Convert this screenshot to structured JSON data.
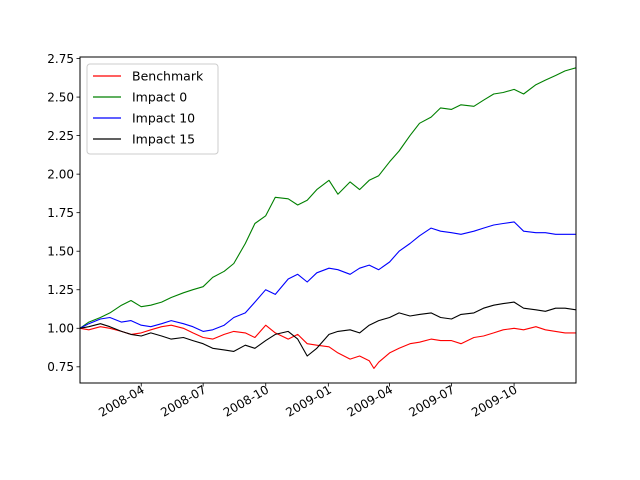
{
  "chart_data": {
    "type": "line",
    "title": "",
    "xlabel": "",
    "ylabel": "",
    "x_range": [
      "2008-01-02",
      "2009-12-31"
    ],
    "ylim": [
      0.645,
      2.76
    ],
    "yticks": [
      0.75,
      1.0,
      1.25,
      1.5,
      1.75,
      2.0,
      2.25,
      2.5,
      2.75
    ],
    "ytick_labels": [
      "0.75",
      "1.00",
      "1.25",
      "1.50",
      "1.75",
      "2.00",
      "2.25",
      "2.50",
      "2.75"
    ],
    "xticks": [
      "2008-04-01",
      "2008-07-01",
      "2008-10-01",
      "2009-01-01",
      "2009-04-01",
      "2009-07-01",
      "2009-10-01"
    ],
    "xtick_labels": [
      "2008-04",
      "2008-07",
      "2008-10",
      "2009-01",
      "2009-04",
      "2009-07",
      "2009-10"
    ],
    "legend_position": "upper-left",
    "grid": false,
    "series": [
      {
        "name": "Benchmark",
        "color": "#ff0000",
        "x": [
          "2008-01-02",
          "2008-01-15",
          "2008-02-01",
          "2008-02-15",
          "2008-03-03",
          "2008-03-17",
          "2008-04-01",
          "2008-04-15",
          "2008-05-01",
          "2008-05-15",
          "2008-06-02",
          "2008-06-16",
          "2008-07-01",
          "2008-07-15",
          "2008-08-01",
          "2008-08-15",
          "2008-09-01",
          "2008-09-15",
          "2008-10-01",
          "2008-10-15",
          "2008-11-03",
          "2008-11-17",
          "2008-12-01",
          "2008-12-15",
          "2009-01-02",
          "2009-01-15",
          "2009-02-02",
          "2009-02-16",
          "2009-03-02",
          "2009-03-09",
          "2009-03-16",
          "2009-04-01",
          "2009-04-15",
          "2009-05-01",
          "2009-05-15",
          "2009-06-01",
          "2009-06-15",
          "2009-07-01",
          "2009-07-15",
          "2009-08-03",
          "2009-08-17",
          "2009-09-01",
          "2009-09-15",
          "2009-10-01",
          "2009-10-15",
          "2009-11-02",
          "2009-11-16",
          "2009-12-01",
          "2009-12-15",
          "2009-12-31"
        ],
        "values": [
          1.0,
          0.99,
          1.01,
          1.0,
          0.98,
          0.96,
          0.97,
          0.99,
          1.01,
          1.02,
          1.0,
          0.97,
          0.94,
          0.93,
          0.96,
          0.98,
          0.97,
          0.94,
          1.02,
          0.97,
          0.93,
          0.96,
          0.9,
          0.89,
          0.88,
          0.84,
          0.8,
          0.82,
          0.79,
          0.74,
          0.78,
          0.84,
          0.87,
          0.9,
          0.91,
          0.93,
          0.92,
          0.92,
          0.9,
          0.94,
          0.95,
          0.97,
          0.99,
          1.0,
          0.99,
          1.01,
          0.99,
          0.98,
          0.97,
          0.97
        ]
      },
      {
        "name": "Impact 0",
        "color": "#008000",
        "x": [
          "2008-01-02",
          "2008-01-15",
          "2008-02-01",
          "2008-02-15",
          "2008-03-03",
          "2008-03-17",
          "2008-04-01",
          "2008-04-15",
          "2008-05-01",
          "2008-05-15",
          "2008-06-02",
          "2008-06-16",
          "2008-07-01",
          "2008-07-15",
          "2008-08-01",
          "2008-08-15",
          "2008-09-01",
          "2008-09-15",
          "2008-10-01",
          "2008-10-15",
          "2008-11-03",
          "2008-11-17",
          "2008-12-01",
          "2008-12-15",
          "2009-01-02",
          "2009-01-15",
          "2009-02-02",
          "2009-02-16",
          "2009-03-02",
          "2009-03-16",
          "2009-04-01",
          "2009-04-15",
          "2009-05-01",
          "2009-05-15",
          "2009-06-01",
          "2009-06-15",
          "2009-07-01",
          "2009-07-15",
          "2009-08-03",
          "2009-08-17",
          "2009-09-01",
          "2009-09-15",
          "2009-10-01",
          "2009-10-15",
          "2009-11-02",
          "2009-11-16",
          "2009-12-01",
          "2009-12-15",
          "2009-12-31"
        ],
        "values": [
          1.0,
          1.04,
          1.07,
          1.1,
          1.15,
          1.18,
          1.14,
          1.15,
          1.17,
          1.2,
          1.23,
          1.25,
          1.27,
          1.33,
          1.37,
          1.42,
          1.55,
          1.68,
          1.73,
          1.85,
          1.84,
          1.8,
          1.83,
          1.9,
          1.96,
          1.87,
          1.95,
          1.9,
          1.96,
          1.99,
          2.08,
          2.15,
          2.25,
          2.33,
          2.37,
          2.43,
          2.42,
          2.45,
          2.44,
          2.48,
          2.52,
          2.53,
          2.55,
          2.52,
          2.58,
          2.61,
          2.64,
          2.67,
          2.69
        ]
      },
      {
        "name": "Impact 10",
        "color": "#0000ff",
        "x": [
          "2008-01-02",
          "2008-01-15",
          "2008-02-01",
          "2008-02-15",
          "2008-03-03",
          "2008-03-17",
          "2008-04-01",
          "2008-04-15",
          "2008-05-01",
          "2008-05-15",
          "2008-06-02",
          "2008-06-16",
          "2008-07-01",
          "2008-07-15",
          "2008-08-01",
          "2008-08-15",
          "2008-09-01",
          "2008-09-15",
          "2008-10-01",
          "2008-10-15",
          "2008-11-03",
          "2008-11-17",
          "2008-12-01",
          "2008-12-15",
          "2009-01-02",
          "2009-01-15",
          "2009-02-02",
          "2009-02-16",
          "2009-03-02",
          "2009-03-16",
          "2009-04-01",
          "2009-04-15",
          "2009-05-01",
          "2009-05-15",
          "2009-06-01",
          "2009-06-15",
          "2009-07-01",
          "2009-07-15",
          "2009-08-03",
          "2009-08-17",
          "2009-09-01",
          "2009-09-15",
          "2009-10-01",
          "2009-10-15",
          "2009-11-02",
          "2009-11-16",
          "2009-12-01",
          "2009-12-15",
          "2009-12-31"
        ],
        "values": [
          1.0,
          1.03,
          1.06,
          1.07,
          1.04,
          1.05,
          1.02,
          1.01,
          1.03,
          1.05,
          1.03,
          1.01,
          0.98,
          0.99,
          1.02,
          1.07,
          1.1,
          1.17,
          1.25,
          1.22,
          1.32,
          1.35,
          1.3,
          1.36,
          1.39,
          1.38,
          1.35,
          1.39,
          1.41,
          1.38,
          1.43,
          1.5,
          1.55,
          1.6,
          1.65,
          1.63,
          1.62,
          1.61,
          1.63,
          1.65,
          1.67,
          1.68,
          1.69,
          1.63,
          1.62,
          1.62,
          1.61,
          1.61,
          1.61
        ]
      },
      {
        "name": "Impact 15",
        "color": "#000000",
        "x": [
          "2008-01-02",
          "2008-01-15",
          "2008-02-01",
          "2008-02-15",
          "2008-03-03",
          "2008-03-17",
          "2008-04-01",
          "2008-04-15",
          "2008-05-01",
          "2008-05-15",
          "2008-06-02",
          "2008-06-16",
          "2008-07-01",
          "2008-07-15",
          "2008-08-01",
          "2008-08-15",
          "2008-09-01",
          "2008-09-15",
          "2008-10-01",
          "2008-10-15",
          "2008-11-03",
          "2008-11-17",
          "2008-12-01",
          "2008-12-15",
          "2009-01-02",
          "2009-01-15",
          "2009-02-02",
          "2009-02-16",
          "2009-03-02",
          "2009-03-16",
          "2009-04-01",
          "2009-04-15",
          "2009-05-01",
          "2009-05-15",
          "2009-06-01",
          "2009-06-15",
          "2009-07-01",
          "2009-07-15",
          "2009-08-03",
          "2009-08-17",
          "2009-09-01",
          "2009-09-15",
          "2009-10-01",
          "2009-10-15",
          "2009-11-02",
          "2009-11-16",
          "2009-12-01",
          "2009-12-15",
          "2009-12-31"
        ],
        "values": [
          1.0,
          1.01,
          1.03,
          1.01,
          0.98,
          0.96,
          0.95,
          0.97,
          0.95,
          0.93,
          0.94,
          0.92,
          0.9,
          0.87,
          0.86,
          0.85,
          0.89,
          0.87,
          0.92,
          0.96,
          0.98,
          0.93,
          0.82,
          0.87,
          0.96,
          0.98,
          0.99,
          0.97,
          1.02,
          1.05,
          1.07,
          1.1,
          1.08,
          1.09,
          1.1,
          1.07,
          1.06,
          1.09,
          1.1,
          1.13,
          1.15,
          1.16,
          1.17,
          1.13,
          1.12,
          1.11,
          1.13,
          1.13,
          1.12
        ]
      }
    ]
  }
}
